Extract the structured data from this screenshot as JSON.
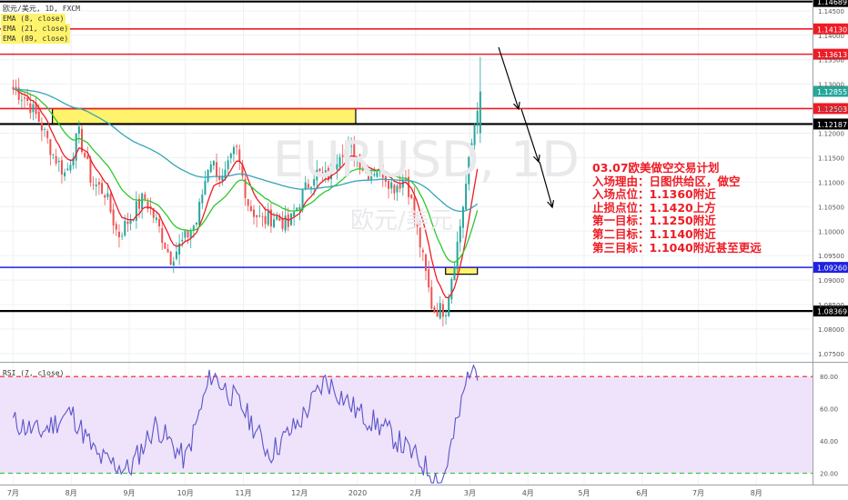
{
  "legend": {
    "symbol": "欧元/美元, 1D, FXCM",
    "ema8": "EMA (8, close)",
    "ema21": "EMA (21, close)",
    "ema89": "EMA (89, close)"
  },
  "watermark": {
    "symbol": "EURUSD, 1D",
    "name": "欧元/美元"
  },
  "plan": {
    "lines": [
      "03.07欧美做空交易计划",
      "入场理由：日图供给区，做空",
      "入场点位：1.1360附近",
      "止损点位：1.1420上方",
      "第一目标：1.1250附近",
      "第二目标：1.1140附近",
      "第三目标：1.1040附近甚至更远"
    ]
  },
  "chart_data": [
    {
      "type": "candlestick",
      "price_range": [
        1.0735,
        1.1472
      ],
      "price_ticks": [
        "1.14500",
        "1.14000",
        "1.13500",
        "1.13000",
        "1.12500",
        "1.12000",
        "1.11500",
        "1.11000",
        "1.10500",
        "1.10000",
        "1.09500",
        "1.09000",
        "1.08500",
        "1.08000",
        "1.07500"
      ],
      "x_ticks": [
        "7月",
        "8月",
        "9月",
        "10月",
        "11月",
        "12月",
        "2020",
        "2月",
        "3月",
        "4月",
        "5月",
        "6月",
        "7月",
        "8月"
      ],
      "levels": [
        {
          "label": "1.14689",
          "value": 1.14689,
          "color": "#000000"
        },
        {
          "label": "1.14130",
          "value": 1.1413,
          "color": "#ee1c25"
        },
        {
          "label": "1.13613",
          "value": 1.13613,
          "color": "#ee1c25"
        },
        {
          "label": "1.12855",
          "value": 1.12855,
          "color": "#26a69a"
        },
        {
          "label": "1.12503",
          "value": 1.12503,
          "color": "#ee1c25"
        },
        {
          "label": "1.12187",
          "value": 1.12187,
          "color": "#000000"
        },
        {
          "label": "1.09260",
          "value": 1.0926,
          "color": "#1f22e0"
        },
        {
          "label": "1.08369",
          "value": 1.08369,
          "color": "#000000"
        }
      ],
      "zones": [
        {
          "from": "2019-07-22",
          "to": "2019-12-31",
          "low": 1.1218,
          "high": 1.125
        },
        {
          "from": "2020-02-17",
          "to": "2020-03-05",
          "low": 1.0912,
          "high": 1.0926
        }
      ],
      "series": [
        {
          "name": "Close",
          "x": [
            "2019-07-01",
            "2019-07-08",
            "2019-07-15",
            "2019-07-22",
            "2019-07-29",
            "2019-08-05",
            "2019-08-12",
            "2019-08-19",
            "2019-08-26",
            "2019-09-02",
            "2019-09-09",
            "2019-09-16",
            "2019-09-23",
            "2019-09-30",
            "2019-10-07",
            "2019-10-14",
            "2019-10-21",
            "2019-10-28",
            "2019-11-04",
            "2019-11-11",
            "2019-11-18",
            "2019-11-25",
            "2019-12-02",
            "2019-12-09",
            "2019-12-16",
            "2019-12-23",
            "2019-12-30",
            "2020-01-06",
            "2020-01-13",
            "2020-01-20",
            "2020-01-27",
            "2020-02-03",
            "2020-02-10",
            "2020-02-17",
            "2020-02-24",
            "2020-03-02",
            "2020-03-06"
          ],
          "values": [
            1.129,
            1.127,
            1.1225,
            1.116,
            1.1115,
            1.12,
            1.11,
            1.108,
            1.099,
            1.103,
            1.107,
            1.1015,
            1.0945,
            1.098,
            1.102,
            1.115,
            1.11,
            1.117,
            1.105,
            1.102,
            1.103,
            1.101,
            1.107,
            1.112,
            1.111,
            1.117,
            1.116,
            1.112,
            1.113,
            1.109,
            1.111,
            1.098,
            1.084,
            1.084,
            1.099,
            1.118,
            1.1285
          ]
        },
        {
          "name": "EMA (8, close)",
          "color": "#ee1c25"
        },
        {
          "name": "EMA (21, close)",
          "color": "#2cc92c"
        },
        {
          "name": "EMA (89, close)",
          "color": "#35a3b8"
        }
      ]
    },
    {
      "type": "line",
      "title": "RSI (7, close)",
      "ylim": [
        13,
        88
      ],
      "y_ticks": [
        "80.00",
        "60.00",
        "40.00",
        "20.00"
      ],
      "levels": [
        80,
        20
      ],
      "series": [
        {
          "name": "RSI",
          "x": [
            "2019-07-01",
            "2019-07-15",
            "2019-08-01",
            "2019-08-15",
            "2019-09-01",
            "2019-09-15",
            "2019-10-01",
            "2019-10-15",
            "2019-11-01",
            "2019-11-15",
            "2019-12-01",
            "2019-12-15",
            "2020-01-01",
            "2020-01-15",
            "2020-02-01",
            "2020-02-15",
            "2020-02-24",
            "2020-03-01",
            "2020-03-06"
          ],
          "values": [
            52,
            45,
            58,
            30,
            22,
            50,
            28,
            82,
            60,
            32,
            52,
            78,
            58,
            48,
            30,
            14,
            55,
            87,
            85
          ]
        }
      ]
    }
  ]
}
